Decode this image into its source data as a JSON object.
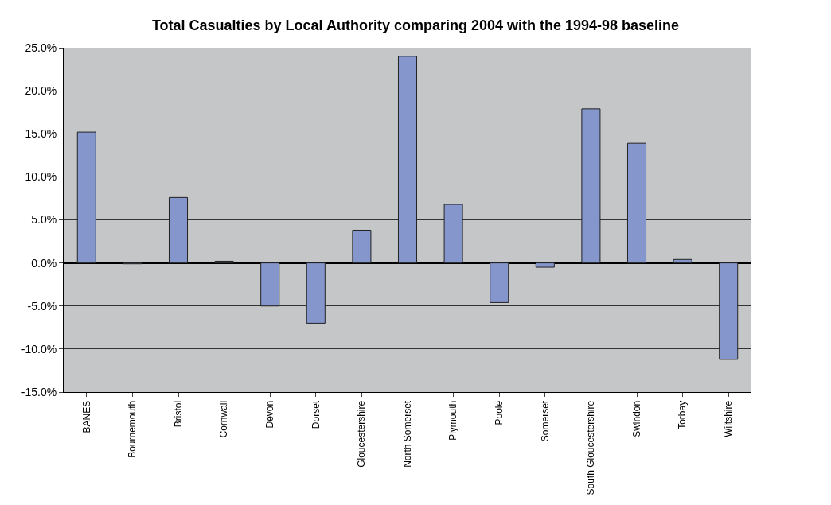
{
  "chart_data": {
    "type": "bar",
    "title": "Total Casualties by Local Authority comparing 2004 with the 1994-98 baseline",
    "categories": [
      "BANES",
      "Bournemouth",
      "Bristol",
      "Cornwall",
      "Devon",
      "Dorset",
      "Gloucestershire",
      "North Somerset",
      "Plymouth",
      "Poole",
      "Somerset",
      "South Gloucestershire",
      "Swindon",
      "Torbay",
      "Wiltshire"
    ],
    "values": [
      15.2,
      -0.1,
      7.6,
      0.2,
      -5.0,
      -7.0,
      3.8,
      24.0,
      6.8,
      -4.6,
      -0.5,
      17.9,
      13.9,
      0.4,
      -11.2
    ],
    "color": "#8596cc",
    "ylim": [
      -15,
      25
    ],
    "yticks": [
      {
        "value": -15,
        "label": "-15.0%"
      },
      {
        "value": -10,
        "label": "-10.0%"
      },
      {
        "value": -5,
        "label": "-5.0%"
      },
      {
        "value": 0,
        "label": "0.0%"
      },
      {
        "value": 5,
        "label": "5.0%"
      },
      {
        "value": 10,
        "label": "10.0%"
      },
      {
        "value": 15,
        "label": "15.0%"
      },
      {
        "value": 20,
        "label": "20.0%"
      },
      {
        "value": 25,
        "label": "25.0%"
      }
    ],
    "grid": "y",
    "legend": false
  }
}
